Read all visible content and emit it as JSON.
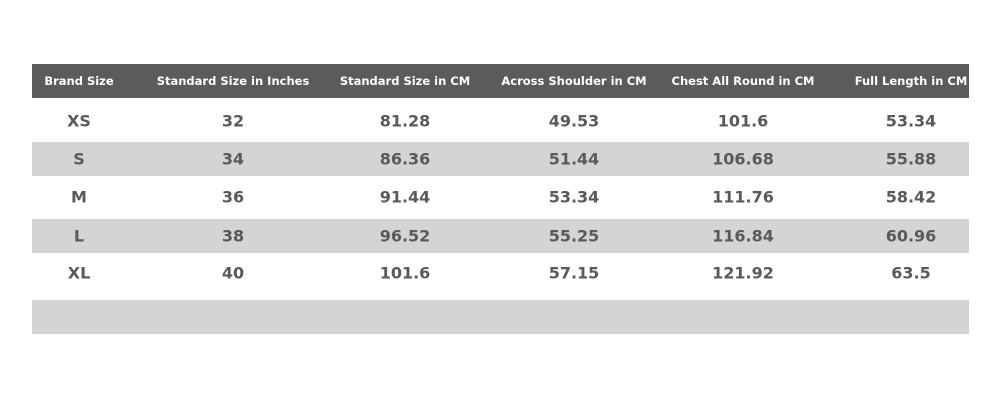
{
  "table": {
    "header": [
      "Brand Size",
      "Standard Size in Inches",
      "Standard Size in CM",
      "Across Shoulder in CM",
      "Chest All Round in CM",
      "Full Length in CM"
    ],
    "rows": [
      [
        "XS",
        "32",
        "81.28",
        "49.53",
        "101.6",
        "53.34"
      ],
      [
        "S",
        "34",
        "86.36",
        "51.44",
        "106.68",
        "55.88"
      ],
      [
        "M",
        "36",
        "91.44",
        "53.34",
        "111.76",
        "58.42"
      ],
      [
        "L",
        "38",
        "96.52",
        "55.25",
        "116.84",
        "60.96"
      ],
      [
        "XL",
        "40",
        "101.6",
        "57.15",
        "121.92",
        "63.5"
      ]
    ]
  }
}
